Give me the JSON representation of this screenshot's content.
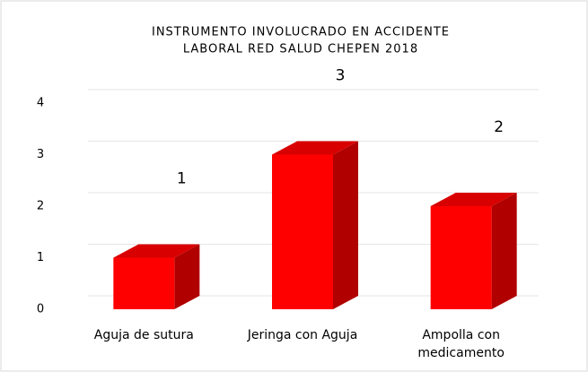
{
  "chart_data": {
    "type": "bar3d",
    "title": [
      "INSTRUMENTO INVOLUCRADO EN ACCIDENTE",
      "LABORAL RED SALUD CHEPEN 2018"
    ],
    "categories": [
      "Aguja de sutura",
      "Jeringa con Aguja",
      "Ampolla con medicamento"
    ],
    "values": [
      1,
      3,
      2
    ],
    "color": "#ff0000",
    "ylim": [
      0,
      4
    ],
    "yticks": [
      0,
      1,
      2,
      3,
      4
    ],
    "grid": true
  }
}
